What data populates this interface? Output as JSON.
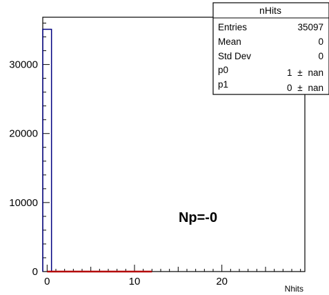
{
  "chart_data": {
    "type": "bar",
    "title": "",
    "xlabel": "Nhits",
    "ylabel": "",
    "xlim": [
      -0.5,
      29.5
    ],
    "ylim": [
      0,
      36850
    ],
    "x_ticks": [
      "0",
      "10",
      "20"
    ],
    "y_ticks": [
      "0",
      "10000",
      "20000",
      "30000"
    ],
    "bins": [
      {
        "x_low": -0.5,
        "x_high": 0.5,
        "count": 35097
      }
    ],
    "histogram_color": "#00007f",
    "fit": {
      "x_from": 0,
      "x_to": 12,
      "y": 0,
      "color": "#b40000"
    },
    "annotation": "Np=-0",
    "grid": false,
    "legend": "stats box top-right"
  },
  "stats": {
    "title": "nHits",
    "rows": [
      {
        "label": "Entries",
        "value": "35097"
      },
      {
        "label": "Mean",
        "value": "0"
      },
      {
        "label": "Std Dev",
        "value": "0"
      },
      {
        "label": "p0",
        "value": "1",
        "pm": "±",
        "err": "nan"
      },
      {
        "label": "p1",
        "value": "0",
        "pm": "±",
        "err": "nan"
      }
    ]
  }
}
